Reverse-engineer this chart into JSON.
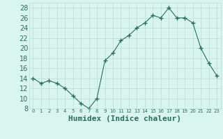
{
  "x": [
    0,
    1,
    2,
    3,
    4,
    5,
    6,
    7,
    8,
    9,
    10,
    11,
    12,
    13,
    14,
    15,
    16,
    17,
    18,
    19,
    20,
    21,
    22,
    23
  ],
  "y": [
    14,
    13,
    13.5,
    13,
    12,
    10.5,
    9,
    8,
    10,
    17.5,
    19,
    21.5,
    22.5,
    24,
    25,
    26.5,
    26,
    28,
    26,
    26,
    25,
    20,
    17,
    14.5
  ],
  "xlabel": "Humidex (Indice chaleur)",
  "ylim": [
    8,
    29
  ],
  "xlim": [
    -0.5,
    23.5
  ],
  "yticks": [
    8,
    10,
    12,
    14,
    16,
    18,
    20,
    22,
    24,
    26,
    28
  ],
  "xtick_labels": [
    "0",
    "1",
    "2",
    "3",
    "4",
    "5",
    "6",
    "7",
    "8",
    "9",
    "10",
    "11",
    "12",
    "13",
    "14",
    "15",
    "16",
    "17",
    "18",
    "19",
    "20",
    "21",
    "22",
    "23"
  ],
  "line_color": "#2d6b5e",
  "marker": "+",
  "marker_size": 4,
  "bg_color": "#d8f5f0",
  "grid_color": "#b8ddd6",
  "tick_color": "#2d6b5e",
  "xlabel_fontsize": 8,
  "ytick_fontsize": 7,
  "xtick_fontsize": 5
}
